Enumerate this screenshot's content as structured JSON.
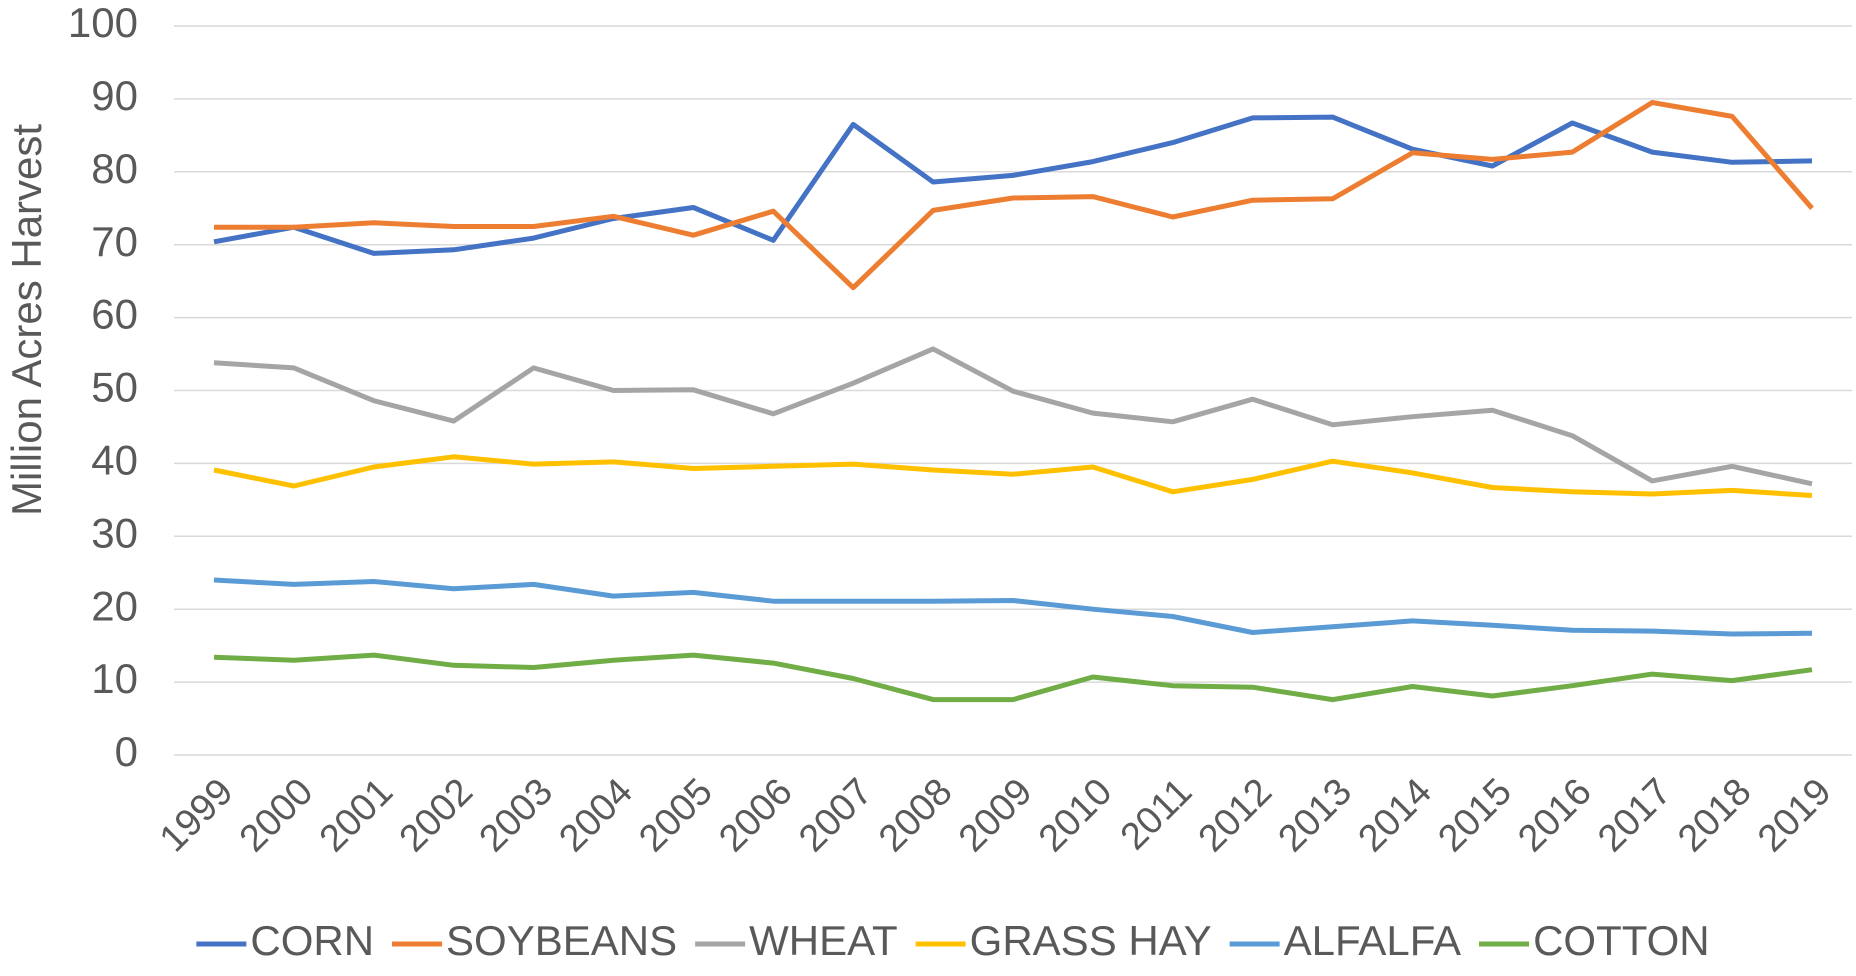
{
  "chart_data": {
    "type": "line",
    "y_label": "Million Acres Harvest",
    "categories": [
      "1999",
      "2000",
      "2001",
      "2002",
      "2003",
      "2004",
      "2005",
      "2006",
      "2007",
      "2008",
      "2009",
      "2010",
      "2011",
      "2012",
      "2013",
      "2014",
      "2015",
      "2016",
      "2017",
      "2018",
      "2019"
    ],
    "series": [
      {
        "name": "CORN",
        "color": "#4472c4",
        "values": [
          70.4,
          72.4,
          68.8,
          69.3,
          70.9,
          73.6,
          75.1,
          70.6,
          86.5,
          78.6,
          79.5,
          81.4,
          84.0,
          87.4,
          87.5,
          83.1,
          80.8,
          86.7,
          82.7,
          81.3,
          81.5
        ]
      },
      {
        "name": "SOYBEANS",
        "color": "#ed7d31",
        "values": [
          72.4,
          72.4,
          73.0,
          72.5,
          72.5,
          73.9,
          71.3,
          74.6,
          64.1,
          74.7,
          76.4,
          76.6,
          73.8,
          76.1,
          76.3,
          82.6,
          81.7,
          82.7,
          89.5,
          87.6,
          75.0
        ]
      },
      {
        "name": "WHEAT",
        "color": "#a5a5a5",
        "values": [
          53.8,
          53.1,
          48.6,
          45.8,
          53.1,
          50.0,
          50.1,
          46.8,
          51.0,
          55.7,
          49.9,
          46.9,
          45.7,
          48.8,
          45.3,
          46.4,
          47.3,
          43.8,
          37.6,
          39.6,
          37.2
        ]
      },
      {
        "name": "GRASS HAY",
        "color": "#ffc000",
        "values": [
          39.1,
          36.9,
          39.5,
          40.9,
          39.9,
          40.2,
          39.3,
          39.6,
          39.9,
          39.1,
          38.5,
          39.5,
          36.1,
          37.8,
          40.3,
          38.7,
          36.7,
          36.1,
          35.8,
          36.3,
          35.6
        ]
      },
      {
        "name": "ALFALFA",
        "color": "#5b9bd5",
        "values": [
          24.0,
          23.4,
          23.8,
          22.8,
          23.4,
          21.8,
          22.3,
          21.1,
          21.1,
          21.1,
          21.2,
          20.0,
          19.0,
          16.8,
          17.6,
          18.4,
          17.8,
          17.1,
          17.0,
          16.6,
          16.7
        ]
      },
      {
        "name": "COTTON",
        "color": "#70ad47",
        "values": [
          13.4,
          13.0,
          13.7,
          12.3,
          12.0,
          13.0,
          13.7,
          12.6,
          10.5,
          7.6,
          7.6,
          10.7,
          9.5,
          9.3,
          7.6,
          9.4,
          8.1,
          9.5,
          11.1,
          10.2,
          11.7
        ]
      }
    ],
    "ylim": [
      0,
      100
    ],
    "yticks": [
      0,
      10,
      20,
      30,
      40,
      50,
      60,
      70,
      80,
      90,
      100
    ],
    "grid": true,
    "legend": "bottom"
  }
}
